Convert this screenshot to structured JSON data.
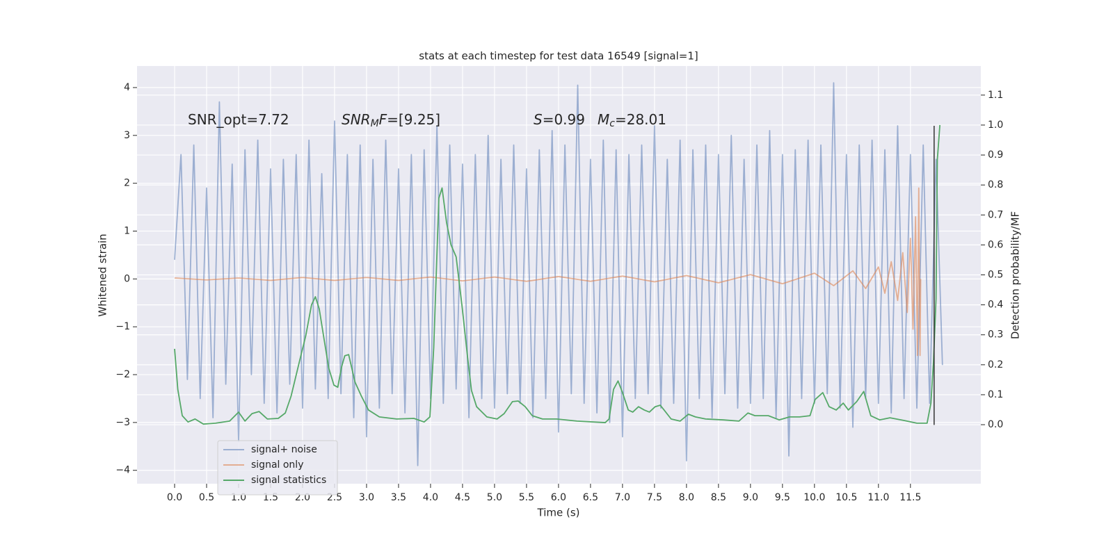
{
  "chart_data": {
    "type": "line",
    "title": "stats at each timestep for test data 16549 [signal=1]",
    "xlabel": "Time (s)",
    "ylabel": "Whitened strain",
    "y2label": "Detection probability/MF",
    "xlim": [
      -0.587,
      12.6
    ],
    "ylim": [
      -4.28,
      4.45
    ],
    "y2lim": [
      -0.197,
      1.197
    ],
    "xticks": [
      {
        "value": 0,
        "label": "0.0"
      },
      0.5,
      {
        "value": 1,
        "label": "1.0"
      },
      1.5,
      {
        "value": 2,
        "label": "2.0"
      },
      2.5,
      {
        "value": 3,
        "label": "3.0"
      },
      3.5,
      {
        "value": 4,
        "label": "4.0"
      },
      4.5,
      {
        "value": 5,
        "label": "5.0"
      },
      5.5,
      {
        "value": 6,
        "label": "6.0"
      },
      6.5,
      {
        "value": 7,
        "label": "7.0"
      },
      7.5,
      {
        "value": 8,
        "label": "8.0"
      },
      8.5,
      {
        "value": 9,
        "label": "9.0"
      },
      9.5,
      {
        "value": 10,
        "label": "10.0"
      },
      10.5,
      {
        "value": 11,
        "label": "11.0"
      },
      11.5
    ],
    "yticks": [
      {
        "value": -4,
        "label": "−4"
      },
      {
        "value": -3,
        "label": "−3"
      },
      {
        "value": -2,
        "label": "−2"
      },
      {
        "value": -1,
        "label": "−1"
      },
      0,
      1,
      2,
      3,
      4
    ],
    "y2ticks": [
      {
        "value": 0,
        "label": "0.0"
      },
      0.1,
      0.2,
      0.3,
      0.4,
      0.5,
      0.6,
      0.7,
      0.8,
      0.9,
      {
        "value": 1,
        "label": "1.0"
      },
      1.1
    ],
    "grid": true,
    "legend": "lower left",
    "series": [
      {
        "name": "signal+ noise",
        "color": "#4c72b0",
        "opacity": 0.5,
        "x": [
          0,
          0.1,
          0.2,
          0.3,
          0.4,
          0.5,
          0.6,
          0.7,
          0.8,
          0.9,
          1,
          1.1,
          1.2,
          1.3,
          1.4,
          1.5,
          1.6,
          1.7,
          1.8,
          1.9,
          2,
          2.1,
          2.2,
          2.3,
          2.4,
          2.5,
          2.6,
          2.7,
          2.8,
          2.9,
          3,
          3.1,
          3.2,
          3.3,
          3.4,
          3.5,
          3.6,
          3.7,
          3.8,
          3.9,
          4,
          4.1,
          4.2,
          4.3,
          4.4,
          4.5,
          4.6,
          4.7,
          4.8,
          4.9,
          5,
          5.1,
          5.2,
          5.3,
          5.4,
          5.5,
          5.6,
          5.7,
          5.8,
          5.9,
          6,
          6.1,
          6.2,
          6.3,
          6.4,
          6.5,
          6.6,
          6.7,
          6.8,
          6.9,
          7,
          7.1,
          7.2,
          7.3,
          7.4,
          7.5,
          7.6,
          7.7,
          7.8,
          7.9,
          8,
          8.1,
          8.2,
          8.3,
          8.4,
          8.5,
          8.6,
          8.7,
          8.8,
          8.9,
          9,
          9.1,
          9.2,
          9.3,
          9.4,
          9.5,
          9.6,
          9.7,
          9.8,
          9.9,
          10,
          10.1,
          10.2,
          10.3,
          10.4,
          10.5,
          10.6,
          10.7,
          10.8,
          10.9,
          11,
          11.1,
          11.2,
          11.3,
          11.4,
          11.5,
          11.6,
          11.7,
          11.8,
          11.9,
          12
        ],
        "values": [
          0.4,
          2.6,
          -2.1,
          2.8,
          -2.5,
          1.9,
          -2.9,
          3.7,
          -2.2,
          2.4,
          -3.4,
          2.7,
          -2.0,
          2.9,
          -2.6,
          2.3,
          -2.8,
          2.5,
          -2.2,
          2.6,
          -2.7,
          2.9,
          -2.3,
          2.2,
          -2.5,
          3.3,
          -2.4,
          2.6,
          -2.9,
          2.8,
          -3.3,
          2.5,
          -2.7,
          2.9,
          -2.4,
          2.3,
          -2.8,
          2.6,
          -3.9,
          2.7,
          -2.5,
          3.2,
          -2.6,
          2.8,
          -2.3,
          2.4,
          -2.9,
          2.6,
          -2.5,
          3.0,
          -2.7,
          2.5,
          -2.4,
          2.8,
          -2.6,
          2.3,
          -2.9,
          2.7,
          -2.5,
          3.1,
          -3.2,
          2.8,
          -2.4,
          4.05,
          -2.6,
          2.5,
          -2.8,
          2.9,
          -3.0,
          2.7,
          -3.3,
          2.6,
          -2.5,
          2.8,
          -2.4,
          3.2,
          -2.7,
          2.5,
          -2.6,
          2.9,
          -3.8,
          2.7,
          -2.5,
          2.8,
          -2.9,
          2.6,
          -2.4,
          3.0,
          -2.7,
          2.5,
          -2.6,
          2.8,
          -2.5,
          3.1,
          -2.9,
          2.6,
          -3.7,
          2.7,
          -2.5,
          2.9,
          -2.6,
          2.8,
          -2.4,
          4.1,
          -2.7,
          2.6,
          -3.1,
          2.8,
          -2.5,
          2.9,
          -2.6,
          2.7,
          -2.8,
          3.2,
          -2.5,
          2.6,
          -2.7,
          2.8,
          -2.6,
          2.5,
          -1.8
        ]
      },
      {
        "name": "signal only",
        "color": "#dd8452",
        "opacity": 0.6,
        "x": [
          0,
          0.5,
          1,
          1.5,
          2,
          2.5,
          3,
          3.5,
          4,
          4.5,
          5,
          5.5,
          6,
          6.5,
          7,
          7.5,
          8,
          8.5,
          9,
          9.5,
          10,
          10.3,
          10.6,
          10.8,
          11,
          11.1,
          11.2,
          11.3,
          11.38,
          11.45,
          11.5,
          11.54,
          11.58,
          11.61,
          11.63,
          11.65,
          11.66
        ],
        "values": [
          0.02,
          -0.02,
          0.02,
          -0.03,
          0.03,
          -0.03,
          0.03,
          -0.03,
          0.04,
          -0.04,
          0.04,
          -0.05,
          0.05,
          -0.05,
          0.06,
          -0.06,
          0.07,
          -0.08,
          0.09,
          -0.1,
          0.12,
          -0.14,
          0.17,
          -0.2,
          0.25,
          -0.3,
          0.36,
          -0.45,
          0.55,
          -0.7,
          0.85,
          -1.05,
          1.3,
          -1.6,
          1.9,
          -1.6,
          0
        ]
      },
      {
        "name": "signal statistics",
        "color": "#55a868",
        "opacity": 1,
        "axis": "y2",
        "x": [
          0,
          0.05,
          0.12,
          0.21,
          0.32,
          0.45,
          0.64,
          0.86,
          1.0,
          1.1,
          1.21,
          1.32,
          1.45,
          1.62,
          1.73,
          1.82,
          1.95,
          2.05,
          2.14,
          2.2,
          2.26,
          2.34,
          2.41,
          2.49,
          2.55,
          2.61,
          2.66,
          2.72,
          2.82,
          2.92,
          3.03,
          3.2,
          3.47,
          3.74,
          3.9,
          3.99,
          4.05,
          4.13,
          4.18,
          4.25,
          4.32,
          4.4,
          4.49,
          4.58,
          4.64,
          4.72,
          4.88,
          5.04,
          5.15,
          5.28,
          5.37,
          5.48,
          5.59,
          5.75,
          5.97,
          6.29,
          6.73,
          6.79,
          6.86,
          6.93,
          7.0,
          7.09,
          7.16,
          7.25,
          7.34,
          7.42,
          7.51,
          7.59,
          7.65,
          7.76,
          7.9,
          8.03,
          8.14,
          8.3,
          8.58,
          8.82,
          8.96,
          9.07,
          9.28,
          9.45,
          9.61,
          9.77,
          9.93,
          10.01,
          10.13,
          10.23,
          10.34,
          10.45,
          10.53,
          10.66,
          10.77,
          10.88,
          11.02,
          11.18,
          11.4,
          11.6,
          11.76,
          11.82,
          11.86,
          11.9,
          11.92,
          11.96
        ],
        "values": [
          0.253,
          0.118,
          0.03,
          0.009,
          0.019,
          0.002,
          0.005,
          0.012,
          0.042,
          0.012,
          0.037,
          0.044,
          0.019,
          0.021,
          0.039,
          0.095,
          0.21,
          0.297,
          0.4,
          0.427,
          0.387,
          0.28,
          0.188,
          0.132,
          0.125,
          0.193,
          0.23,
          0.234,
          0.142,
          0.095,
          0.049,
          0.026,
          0.019,
          0.021,
          0.009,
          0.026,
          0.258,
          0.756,
          0.79,
          0.675,
          0.6,
          0.56,
          0.4,
          0.223,
          0.114,
          0.06,
          0.026,
          0.019,
          0.037,
          0.077,
          0.079,
          0.06,
          0.03,
          0.019,
          0.019,
          0.012,
          0.007,
          0.019,
          0.118,
          0.146,
          0.107,
          0.049,
          0.042,
          0.06,
          0.049,
          0.042,
          0.06,
          0.065,
          0.049,
          0.019,
          0.012,
          0.035,
          0.026,
          0.019,
          0.016,
          0.012,
          0.039,
          0.03,
          0.03,
          0.016,
          0.026,
          0.026,
          0.03,
          0.084,
          0.107,
          0.06,
          0.049,
          0.072,
          0.049,
          0.077,
          0.111,
          0.03,
          0.016,
          0.023,
          0.014,
          0.005,
          0.005,
          0.072,
          0.21,
          0.42,
          0.884,
          1.0
        ]
      }
    ],
    "vline": {
      "x": 11.87,
      "ymin": -3.05,
      "ymax": 3.2,
      "color": "#333333"
    },
    "annotations": [
      [
        {
          "text": "SNR_opt=7.72",
          "style": "normal"
        }
      ],
      [
        {
          "text": "SNR",
          "style": "italic"
        },
        {
          "text": "M",
          "style": "sub"
        },
        {
          "text": "F",
          "style": "italic"
        },
        {
          "text": "=[9.25]",
          "style": "normal"
        }
      ],
      [
        {
          "text": "S",
          "style": "italic"
        },
        {
          "text": "=0.99",
          "style": "normal"
        }
      ],
      [
        {
          "text": "M",
          "style": "italic"
        },
        {
          "text": "c",
          "style": "sub"
        },
        {
          "text": "=28.01",
          "style": "normal"
        }
      ]
    ]
  }
}
